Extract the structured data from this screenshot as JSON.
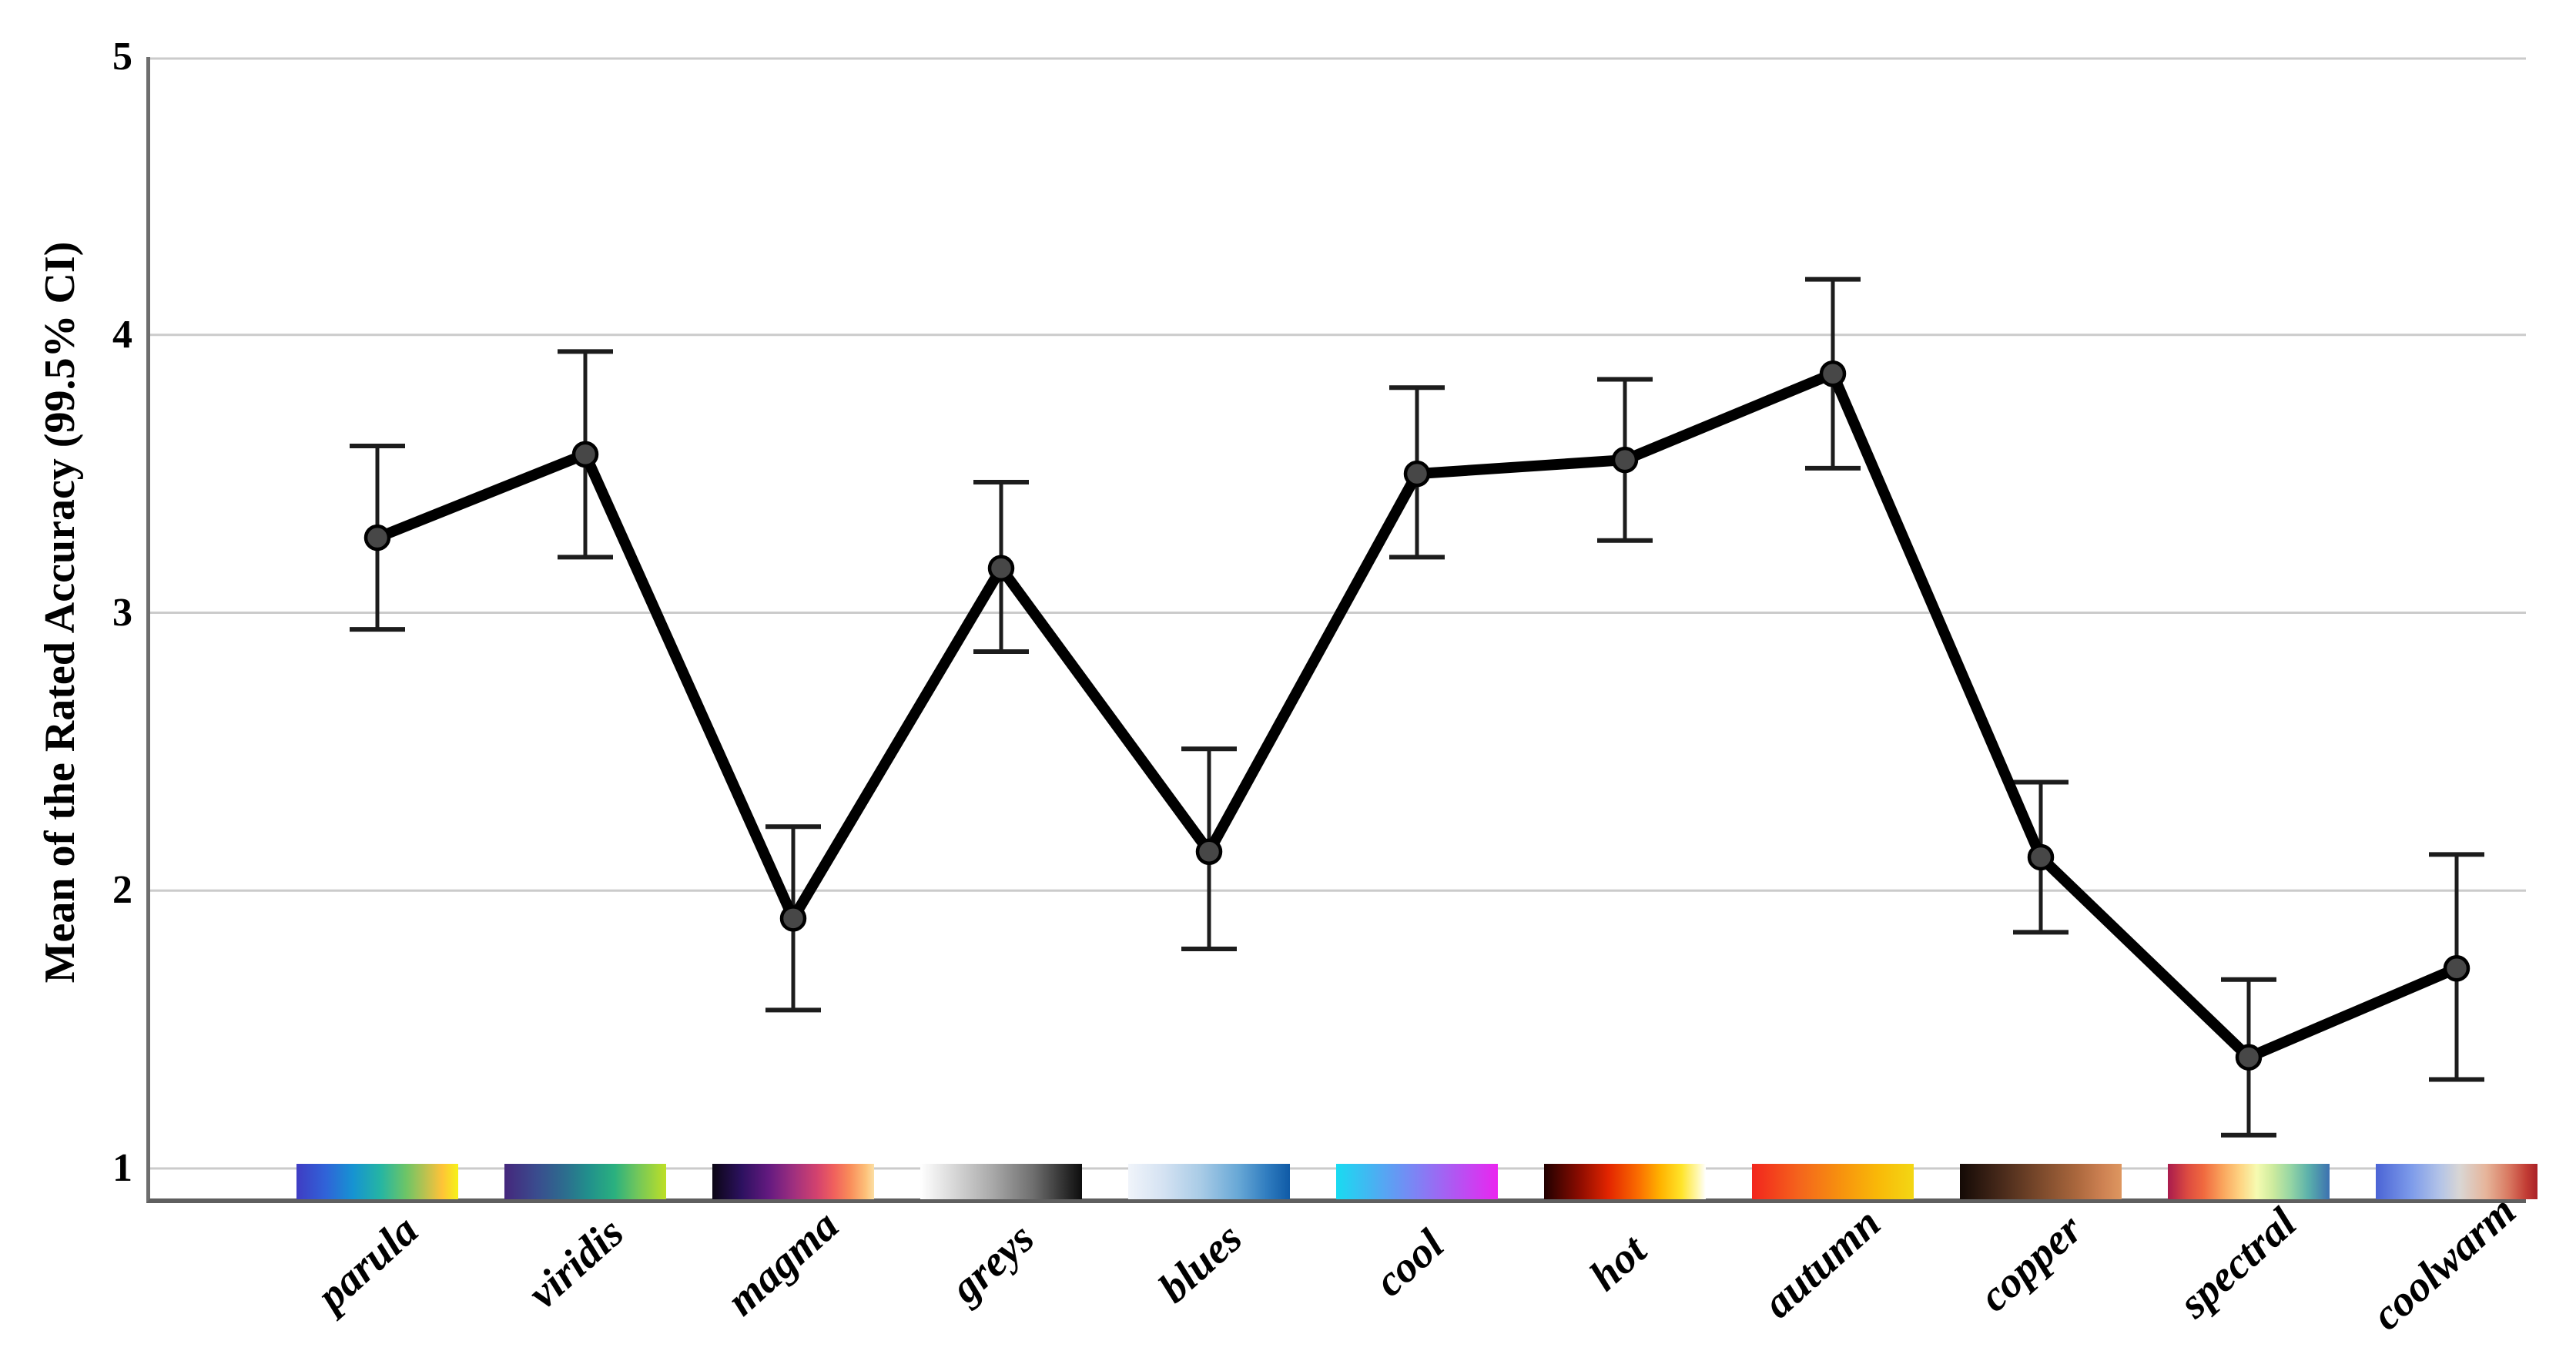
{
  "figure": {
    "y_axis_title": "Mean of the Rated Accuracy (99.5% CI)"
  },
  "chart_data": {
    "type": "line",
    "title": "",
    "xlabel": "",
    "ylabel": "Mean of the Rated Accuracy (99.5% CI)",
    "ylim": [
      1,
      5
    ],
    "yticks": [
      5,
      4,
      3,
      2,
      1
    ],
    "grid": "horizontal-gridlines-on",
    "legend": "none",
    "marker": "circle",
    "error_bars": "99.5% CI",
    "categories": [
      "parula",
      "viridis",
      "magma",
      "greys",
      "blues",
      "cool",
      "hot",
      "autumn",
      "copper",
      "spectral",
      "coolwarm"
    ],
    "series": [
      {
        "name": "mean_rated_accuracy",
        "values": [
          3.27,
          3.57,
          1.9,
          3.16,
          2.14,
          3.5,
          3.55,
          3.86,
          2.12,
          1.4,
          1.72
        ]
      },
      {
        "name": "ci_upper_99_5",
        "values": [
          3.6,
          3.94,
          2.23,
          3.47,
          2.51,
          3.81,
          3.84,
          4.2,
          2.39,
          1.68,
          2.13
        ]
      },
      {
        "name": "ci_lower_99_5",
        "values": [
          2.94,
          3.2,
          1.57,
          2.86,
          1.79,
          3.2,
          3.26,
          3.52,
          1.85,
          1.12,
          1.32
        ]
      }
    ],
    "colormap_swatches": {
      "parula": [
        "#3f3cc3 0%",
        "#3063d8 18%",
        "#1693d2 35%",
        "#25b5a3 52%",
        "#6ec566 68%",
        "#bdc24f 80%",
        "#fec338 90%",
        "#f6f219 100%"
      ],
      "viridis": [
        "#45277c 0%",
        "#3a4c8e 20%",
        "#2c6e8e 38%",
        "#21908c 52%",
        "#2ab07f 68%",
        "#70c65c 82%",
        "#bddf26 100%"
      ],
      "magma": [
        "#0b0614 0%",
        "#2c115f 18%",
        "#641a80 35%",
        "#9e2f7f 50%",
        "#d4436e 65%",
        "#f0605d 75%",
        "#f98c5a 85%",
        "#fdc17a 95%",
        "#fcdfa4 100%"
      ],
      "greys": [
        "#ffffff 0%",
        "#d9d9d9 20%",
        "#a8a8a8 45%",
        "#6e6e6e 70%",
        "#333333 88%",
        "#0d0d0d 100%"
      ],
      "blues": [
        "#f0f4fa 0%",
        "#d4e2f2 22%",
        "#a8cbe6 45%",
        "#68a8d6 68%",
        "#2f7cbf 86%",
        "#0f5aa6 100%"
      ],
      "cool": [
        "#19dbf1 0%",
        "#7f82f4 50%",
        "#ea25f0 100%"
      ],
      "hot": [
        "#200000 0%",
        "#8c0c00 22%",
        "#e32500 40%",
        "#fa6c00 58%",
        "#ffb300 72%",
        "#ffe42a 85%",
        "#fff8b0 95%",
        "#ffffff 100%"
      ],
      "autumn": [
        "#f2251d 0%",
        "#f4661c 30%",
        "#f7920e 55%",
        "#f9b908 78%",
        "#f3d714 100%"
      ],
      "copper": [
        "#140a06 0%",
        "#47291a 25%",
        "#7c4a2c 50%",
        "#aa673d 72%",
        "#cd8152 88%",
        "#de9760 100%"
      ],
      "spectral": [
        "#a91b4d 0%",
        "#dc4a41 12%",
        "#f0693f 22%",
        "#faa55d 34%",
        "#fed584 45%",
        "#f6fbb1 55%",
        "#cdeb9e 65%",
        "#95d5a4 76%",
        "#5bb0ab 87%",
        "#3c71b0 100%"
      ],
      "coolwarm": [
        "#4b64d5 0%",
        "#7d9bea 22%",
        "#b4c4e7 40%",
        "#d9d6d4 52%",
        "#e6b59b 68%",
        "#d97a62 82%",
        "#c23d35 93%",
        "#aa2027 100%"
      ]
    },
    "colors": {
      "background": "#ffffff",
      "gridline": "#cbcbcb",
      "axis_frame": "#5f5f5f",
      "series_line": "#000000",
      "error_bar": "#1c1c1c",
      "marker_fill": "#474747",
      "marker_stroke": "#000000",
      "text": "#000000"
    }
  }
}
